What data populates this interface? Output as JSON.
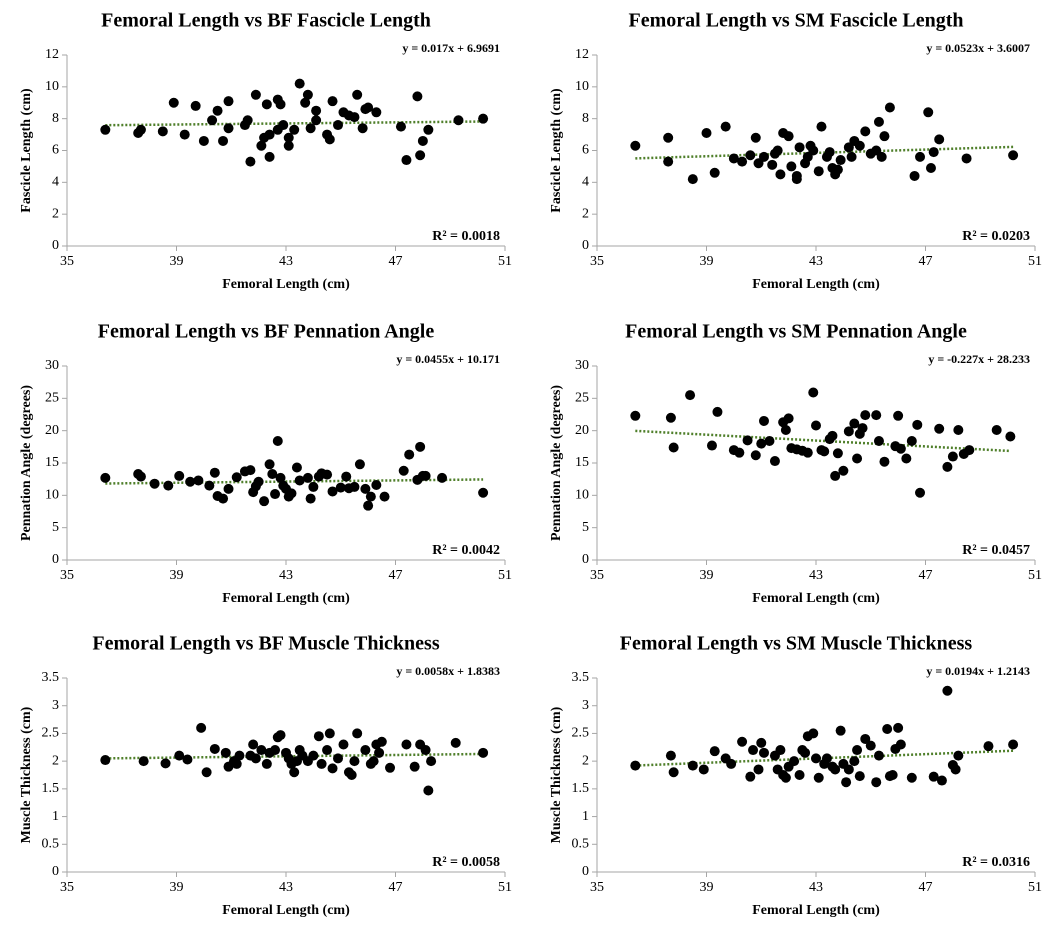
{
  "chart_data": [
    {
      "type": "scatter",
      "title": "Femoral Length vs BF Fascicle Length",
      "x_label": "Femoral Length (cm)",
      "y_label": "Fascicle Length (cm)",
      "x": [
        36.4,
        37.6,
        37.7,
        38.5,
        38.9,
        39.3,
        39.7,
        40.0,
        40.3,
        40.5,
        40.7,
        40.9,
        40.9,
        41.5,
        41.6,
        41.7,
        41.9,
        42.1,
        42.2,
        42.3,
        42.4,
        42.4,
        42.7,
        42.7,
        42.8,
        42.9,
        43.1,
        43.1,
        43.3,
        43.5,
        43.7,
        43.8,
        43.9,
        44.1,
        44.1,
        44.5,
        44.6,
        44.7,
        44.9,
        45.1,
        45.3,
        45.5,
        45.6,
        45.8,
        45.9,
        46.0,
        46.3,
        47.2,
        47.4,
        47.8,
        47.9,
        48.0,
        48.2,
        49.3,
        50.2
      ],
      "values": [
        7.3,
        7.1,
        7.3,
        7.2,
        9.0,
        7.0,
        8.8,
        6.6,
        7.9,
        8.5,
        6.6,
        9.1,
        7.4,
        7.6,
        7.9,
        5.3,
        9.5,
        6.3,
        6.8,
        8.9,
        5.6,
        7.0,
        9.2,
        7.3,
        8.9,
        7.6,
        6.3,
        6.8,
        7.3,
        10.2,
        9.0,
        9.5,
        7.4,
        8.5,
        7.9,
        7.0,
        6.7,
        9.1,
        7.6,
        8.4,
        8.2,
        8.1,
        9.5,
        7.4,
        8.6,
        8.7,
        8.4,
        7.5,
        5.4,
        9.4,
        5.7,
        6.6,
        7.3,
        7.9,
        8.0
      ],
      "color": "#000000",
      "xlim": [
        35,
        51
      ],
      "xticks": [
        35,
        39,
        43,
        47,
        51
      ],
      "ylim": [
        0,
        12
      ],
      "yticks": [
        0,
        2,
        4,
        6,
        8,
        10,
        12
      ],
      "trendline": {
        "slope": 0.017,
        "intercept": 6.9691,
        "color": "#4f7f2a",
        "equation": "y = 0.017x + 6.9691",
        "r_squared_label": "R² = 0.0018"
      }
    },
    {
      "type": "scatter",
      "title": "Femoral Length vs SM Fascicle Length",
      "x_label": "Femoral Length (cm)",
      "y_label": "Fascicle Length (cm)",
      "x": [
        36.4,
        37.6,
        37.6,
        38.5,
        39.0,
        39.3,
        39.7,
        40.0,
        40.3,
        40.6,
        40.8,
        40.9,
        41.1,
        41.4,
        41.5,
        41.6,
        41.7,
        41.8,
        42.0,
        42.1,
        42.3,
        42.3,
        42.4,
        42.6,
        42.7,
        42.8,
        42.9,
        43.1,
        43.2,
        43.4,
        43.5,
        43.6,
        43.7,
        43.8,
        43.9,
        44.2,
        44.3,
        44.4,
        44.6,
        44.8,
        45.0,
        45.2,
        45.3,
        45.4,
        45.5,
        45.7,
        46.6,
        46.8,
        47.1,
        47.2,
        47.3,
        47.5,
        48.5,
        50.2
      ],
      "values": [
        6.3,
        5.3,
        6.8,
        4.2,
        7.1,
        4.6,
        7.5,
        5.5,
        5.3,
        5.7,
        6.8,
        5.2,
        5.6,
        5.1,
        5.8,
        6.0,
        4.5,
        7.1,
        6.9,
        5.0,
        4.4,
        4.2,
        6.2,
        5.2,
        5.6,
        6.3,
        6.0,
        4.7,
        7.5,
        5.6,
        5.9,
        4.9,
        4.5,
        4.8,
        5.4,
        6.2,
        5.6,
        6.6,
        6.3,
        7.2,
        5.8,
        6.0,
        7.8,
        5.6,
        6.9,
        8.7,
        4.4,
        5.6,
        8.4,
        4.9,
        5.9,
        6.7,
        5.5,
        5.7
      ],
      "color": "#000000",
      "xlim": [
        35,
        51
      ],
      "xticks": [
        35,
        39,
        43,
        47,
        51
      ],
      "ylim": [
        0,
        12
      ],
      "yticks": [
        0,
        2,
        4,
        6,
        8,
        10,
        12
      ],
      "trendline": {
        "slope": 0.0523,
        "intercept": 3.6007,
        "color": "#4f7f2a",
        "equation": "y = 0.0523x + 3.6007",
        "r_squared_label": "R² = 0.0203"
      }
    },
    {
      "type": "scatter",
      "title": "Femoral Length vs BF Pennation Angle",
      "x_label": "Femoral Length (cm)",
      "y_label": "Pennation Angle (degrees)",
      "x": [
        36.4,
        37.6,
        37.7,
        38.2,
        38.7,
        39.1,
        39.5,
        39.8,
        40.2,
        40.4,
        40.5,
        40.7,
        40.9,
        41.2,
        41.5,
        41.7,
        41.8,
        41.9,
        42.0,
        42.2,
        42.4,
        42.5,
        42.6,
        42.7,
        42.8,
        42.9,
        43.0,
        43.1,
        43.2,
        43.4,
        43.5,
        43.8,
        43.9,
        44.0,
        44.2,
        44.3,
        44.5,
        44.7,
        45.0,
        45.2,
        45.3,
        45.5,
        45.7,
        45.9,
        46.0,
        46.1,
        46.3,
        46.6,
        47.3,
        47.5,
        47.8,
        47.9,
        48.0,
        48.1,
        48.7,
        50.2
      ],
      "values": [
        12.7,
        13.3,
        12.9,
        11.8,
        11.5,
        13.0,
        12.1,
        12.3,
        11.5,
        13.5,
        9.9,
        9.5,
        11.0,
        12.8,
        13.7,
        13.9,
        10.5,
        11.4,
        12.1,
        9.1,
        14.8,
        13.3,
        10.2,
        18.4,
        12.7,
        11.5,
        11.0,
        9.8,
        10.3,
        14.3,
        12.3,
        12.7,
        9.5,
        11.3,
        12.9,
        13.4,
        13.2,
        10.6,
        11.2,
        12.9,
        11.1,
        11.3,
        14.8,
        11.0,
        8.4,
        9.8,
        11.6,
        9.8,
        13.8,
        16.3,
        12.4,
        17.5,
        13.0,
        13.0,
        12.7,
        10.4
      ],
      "color": "#000000",
      "xlim": [
        35,
        51
      ],
      "xticks": [
        35,
        39,
        43,
        47,
        51
      ],
      "ylim": [
        0,
        30
      ],
      "yticks": [
        0,
        5,
        10,
        15,
        20,
        25,
        30
      ],
      "trendline": {
        "slope": 0.0455,
        "intercept": 10.171,
        "color": "#4f7f2a",
        "equation": "y = 0.0455x + 10.171",
        "r_squared_label": "R² = 0.0042"
      }
    },
    {
      "type": "scatter",
      "title": "Femoral Length vs SM Pennation Angle",
      "x_label": "Femoral Length (cm)",
      "y_label": "Pennation Angle (degrees)",
      "x": [
        36.4,
        37.7,
        37.8,
        38.4,
        39.2,
        39.4,
        40.0,
        40.2,
        40.5,
        40.8,
        41.0,
        41.1,
        41.3,
        41.5,
        41.8,
        41.9,
        42.0,
        42.1,
        42.3,
        42.5,
        42.7,
        42.9,
        43.0,
        43.2,
        43.3,
        43.5,
        43.6,
        43.7,
        43.8,
        44.0,
        44.2,
        44.4,
        44.5,
        44.6,
        44.7,
        44.8,
        45.2,
        45.3,
        45.5,
        45.9,
        46.0,
        46.1,
        46.3,
        46.5,
        46.7,
        46.8,
        47.5,
        47.8,
        48.0,
        48.2,
        48.4,
        48.6,
        49.6,
        50.1
      ],
      "values": [
        22.3,
        22.0,
        17.4,
        25.5,
        17.7,
        22.9,
        17.0,
        16.6,
        18.5,
        16.2,
        18.0,
        21.5,
        18.4,
        15.3,
        21.3,
        20.1,
        21.9,
        17.3,
        17.1,
        16.9,
        16.6,
        25.9,
        20.8,
        17.0,
        16.8,
        18.7,
        19.2,
        13.0,
        16.5,
        13.8,
        19.9,
        21.1,
        15.7,
        19.5,
        20.4,
        22.4,
        22.4,
        18.4,
        15.2,
        17.6,
        22.3,
        17.2,
        15.7,
        18.4,
        20.9,
        10.4,
        20.3,
        14.4,
        16.0,
        20.1,
        16.4,
        17.0,
        20.1,
        19.1
      ],
      "color": "#000000",
      "xlim": [
        35,
        51
      ],
      "xticks": [
        35,
        39,
        43,
        47,
        51
      ],
      "ylim": [
        0,
        30
      ],
      "yticks": [
        0,
        5,
        10,
        15,
        20,
        25,
        30
      ],
      "trendline": {
        "slope": -0.227,
        "intercept": 28.233,
        "color": "#4f7f2a",
        "equation": "y = -0.227x + 28.233",
        "r_squared_label": "R² = 0.0457"
      }
    },
    {
      "type": "scatter",
      "title": "Femoral Length vs BF Muscle Thickness",
      "x_label": "Femoral Length (cm)",
      "y_label": "Muscle Thickness (cm)",
      "x": [
        36.4,
        37.8,
        38.6,
        39.1,
        39.4,
        39.9,
        40.1,
        40.4,
        40.8,
        40.9,
        41.1,
        41.2,
        41.3,
        41.7,
        41.8,
        41.9,
        42.1,
        42.3,
        42.4,
        42.6,
        42.7,
        42.8,
        43.0,
        43.1,
        43.2,
        43.3,
        43.4,
        43.5,
        43.6,
        43.8,
        44.0,
        44.2,
        44.3,
        44.5,
        44.6,
        44.7,
        44.9,
        45.1,
        45.3,
        45.4,
        45.5,
        45.6,
        45.9,
        46.1,
        46.2,
        46.3,
        46.4,
        46.5,
        46.8,
        47.4,
        47.7,
        47.9,
        48.1,
        48.2,
        48.3,
        49.2,
        50.2
      ],
      "values": [
        2.02,
        2.0,
        1.96,
        2.1,
        2.03,
        2.6,
        1.8,
        2.22,
        2.15,
        1.9,
        2.0,
        1.95,
        2.1,
        2.1,
        2.3,
        2.05,
        2.2,
        1.95,
        2.15,
        2.2,
        2.43,
        2.47,
        2.15,
        2.05,
        1.95,
        1.8,
        2.0,
        2.2,
        2.1,
        2.0,
        2.1,
        2.45,
        1.95,
        2.2,
        2.5,
        1.87,
        2.05,
        2.3,
        1.8,
        1.75,
        2.0,
        2.5,
        2.2,
        1.95,
        2.0,
        2.3,
        2.15,
        2.35,
        1.88,
        2.3,
        1.9,
        2.3,
        2.2,
        1.47,
        2.0,
        2.33,
        2.15
      ],
      "color": "#000000",
      "xlim": [
        35,
        51
      ],
      "xticks": [
        35,
        39,
        43,
        47,
        51
      ],
      "ylim": [
        0,
        3.5
      ],
      "yticks": [
        0,
        0.5,
        1,
        1.5,
        2,
        2.5,
        3,
        3.5
      ],
      "trendline": {
        "slope": 0.0058,
        "intercept": 1.8383,
        "color": "#4f7f2a",
        "equation": "y = 0.0058x + 1.8383",
        "r_squared_label": "R² = 0.0058"
      }
    },
    {
      "type": "scatter",
      "title": "Femoral Length vs SM Muscle Thickness",
      "x_label": "Femoral Length (cm)",
      "y_label": "Muscle Thickness (cm)",
      "x": [
        36.4,
        37.7,
        37.8,
        38.5,
        38.9,
        39.3,
        39.7,
        39.9,
        40.3,
        40.6,
        40.7,
        40.9,
        41.0,
        41.1,
        41.5,
        41.6,
        41.7,
        41.8,
        41.9,
        42.0,
        42.2,
        42.4,
        42.5,
        42.6,
        42.7,
        42.9,
        43.0,
        43.1,
        43.3,
        43.4,
        43.6,
        43.7,
        43.9,
        44.0,
        44.1,
        44.2,
        44.4,
        44.5,
        44.6,
        44.8,
        45.0,
        45.2,
        45.3,
        45.6,
        45.7,
        45.8,
        45.9,
        46.0,
        46.1,
        46.5,
        47.3,
        47.6,
        47.8,
        48.0,
        48.1,
        48.2,
        49.3,
        50.2
      ],
      "values": [
        1.92,
        2.1,
        1.8,
        1.92,
        1.85,
        2.18,
        2.05,
        1.95,
        2.35,
        1.72,
        2.2,
        1.85,
        2.33,
        2.15,
        2.1,
        1.85,
        2.2,
        1.75,
        1.7,
        1.9,
        2.0,
        1.75,
        2.2,
        2.15,
        2.45,
        2.5,
        2.05,
        1.7,
        1.95,
        2.05,
        1.9,
        1.85,
        2.55,
        1.95,
        1.62,
        1.85,
        2.0,
        2.2,
        1.73,
        2.4,
        2.28,
        1.62,
        2.1,
        2.58,
        1.73,
        1.75,
        2.22,
        2.6,
        2.3,
        1.7,
        1.72,
        1.65,
        3.27,
        1.93,
        1.85,
        2.1,
        2.27,
        2.3
      ],
      "color": "#000000",
      "xlim": [
        35,
        51
      ],
      "xticks": [
        35,
        39,
        43,
        47,
        51
      ],
      "ylim": [
        0,
        3.5
      ],
      "yticks": [
        0,
        0.5,
        1,
        1.5,
        2,
        2.5,
        3,
        3.5
      ],
      "trendline": {
        "slope": 0.0194,
        "intercept": 1.2143,
        "color": "#4f7f2a",
        "equation": "y = 0.0194x + 1.2143",
        "r_squared_label": "R² = 0.0316"
      }
    }
  ]
}
